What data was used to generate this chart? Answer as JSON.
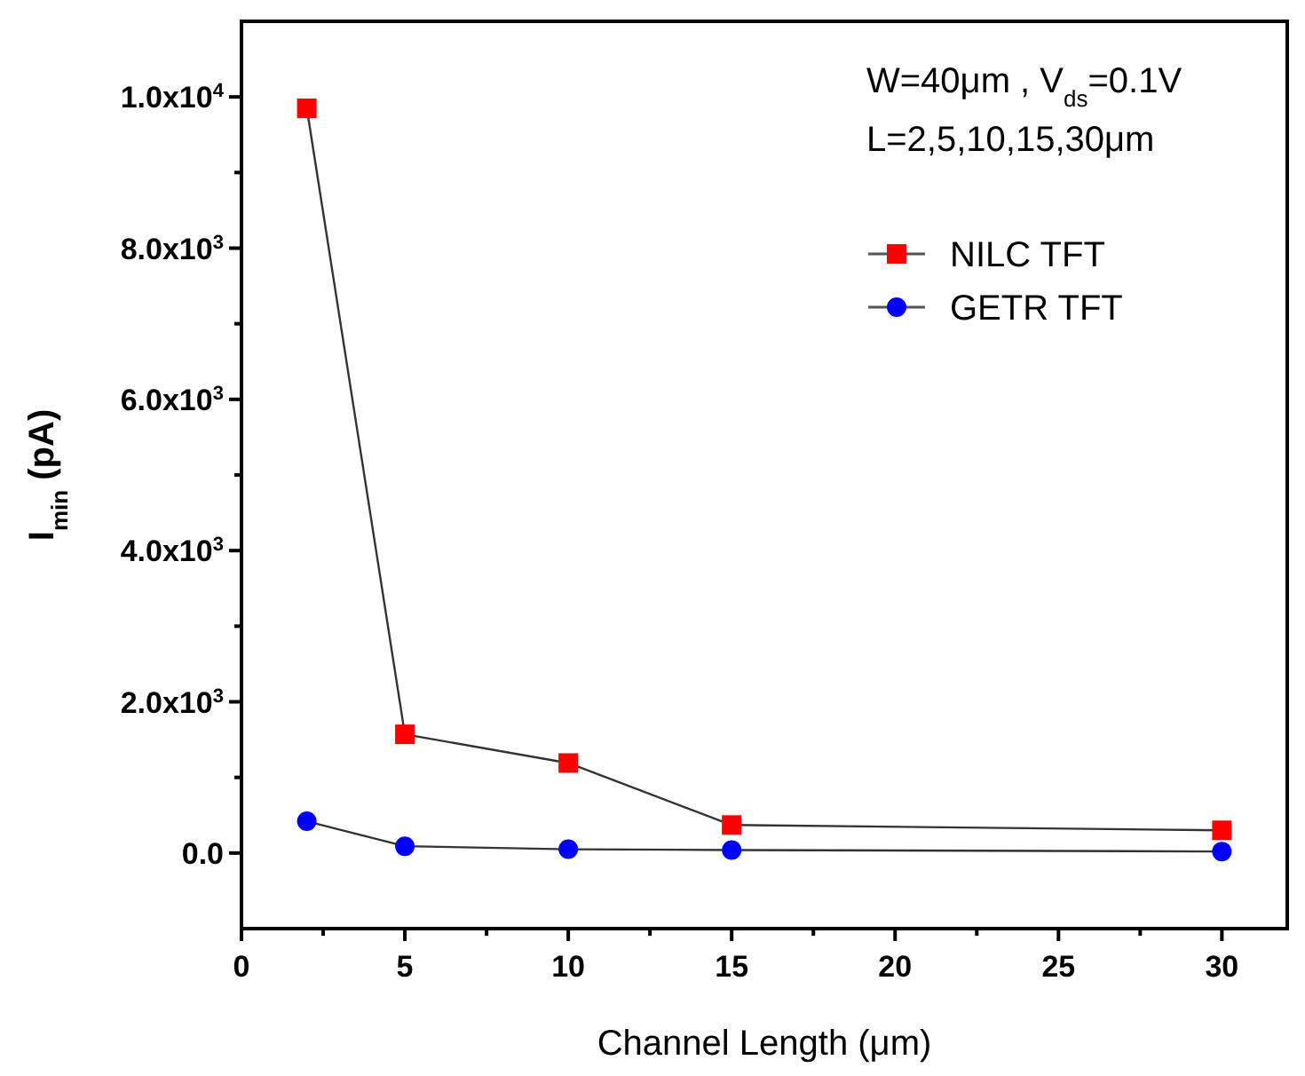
{
  "chart_data": {
    "type": "line",
    "xlabel": "Channel Length (μm)",
    "ylabel": "I$_{min}$ (pA)",
    "annotations": [
      "W=40μm , V$_{ds}$=0.1V",
      "L=2,5,10,15,30μm"
    ],
    "x": [
      2,
      5,
      10,
      15,
      30
    ],
    "series": [
      {
        "name": "NILC TFT",
        "color": "#ff0000",
        "marker": "square",
        "values": [
          9850,
          1570,
          1190,
          370,
          300
        ]
      },
      {
        "name": "GETR TFT",
        "color": "#0000ff",
        "marker": "circle",
        "values": [
          420,
          90,
          50,
          40,
          20
        ]
      }
    ],
    "xlim": [
      0,
      32
    ],
    "xticks": [
      0,
      {
        "value": 2.5,
        "label": null
      },
      5,
      {
        "value": 7.5,
        "label": null
      },
      10,
      {
        "value": 12.5,
        "label": null
      },
      15,
      {
        "value": 17.5,
        "label": null
      },
      20,
      {
        "value": 22.5,
        "label": null
      },
      25,
      {
        "value": 27.5,
        "label": null
      },
      30
    ],
    "ylim": [
      -1000,
      11000
    ],
    "yticks": [
      {
        "value": 0,
        "label": "0.0"
      },
      {
        "value": 1000,
        "label": null
      },
      {
        "value": 2000,
        "label": "2.0x10$^{3}$"
      },
      {
        "value": 3000,
        "label": null
      },
      {
        "value": 4000,
        "label": "4.0x10$^{3}$"
      },
      {
        "value": 5000,
        "label": null
      },
      {
        "value": 6000,
        "label": "6.0x10$^{3}$"
      },
      {
        "value": 7000,
        "label": null
      },
      {
        "value": 8000,
        "label": "8.0x10$^{3}$"
      },
      {
        "value": 9000,
        "label": null
      },
      {
        "value": 10000,
        "label": "1.0x10$^{4}$"
      }
    ],
    "grid": false,
    "legend": "top right",
    "line_style": "solid"
  }
}
